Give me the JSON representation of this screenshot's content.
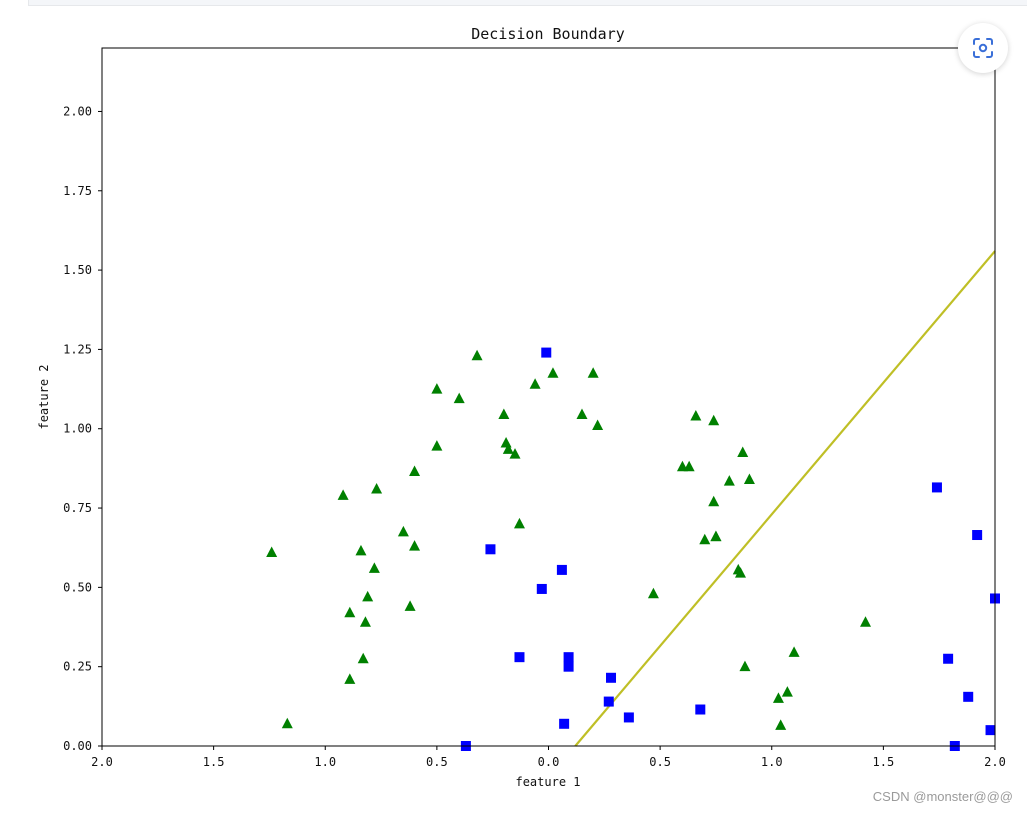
{
  "lens_button": {
    "icon": "scan-lens-icon"
  },
  "watermark": "CSDN @monster@@@",
  "chart_data": {
    "type": "scatter",
    "title": "Decision Boundary",
    "xlabel": "feature 1",
    "ylabel": "feature 2",
    "xlim": [
      -2.0,
      2.0
    ],
    "ylim": [
      0.0,
      2.2
    ],
    "x_ticks": [
      -2.0,
      -1.5,
      -1.0,
      -0.5,
      0.0,
      0.5,
      1.0,
      1.5,
      2.0
    ],
    "x_tick_labels": [
      "2.0",
      "1.5",
      "1.0",
      "0.5",
      "0.0",
      "0.5",
      "1.0",
      "1.5",
      "2.0"
    ],
    "y_ticks": [
      0.0,
      0.25,
      0.5,
      0.75,
      1.0,
      1.25,
      1.5,
      1.75,
      2.0
    ],
    "y_tick_labels": [
      "0.00",
      "0.25",
      "0.50",
      "0.75",
      "1.00",
      "1.25",
      "1.50",
      "1.75",
      "2.00"
    ],
    "grid": false,
    "series": [
      {
        "marker": "square",
        "color": "#0000ff",
        "x": [
          -0.01,
          -0.26,
          0.06,
          -0.03,
          -0.13,
          0.09,
          0.09,
          0.28,
          0.27,
          0.07,
          0.36,
          0.68,
          -0.37,
          1.74,
          1.92,
          2.0,
          1.79,
          1.88,
          1.98,
          1.82
        ],
        "y": [
          1.24,
          0.62,
          0.555,
          0.495,
          0.28,
          0.28,
          0.25,
          0.215,
          0.14,
          0.07,
          0.09,
          0.115,
          0.0,
          0.815,
          0.665,
          0.465,
          0.275,
          0.155,
          0.05,
          0.0
        ]
      },
      {
        "marker": "triangle",
        "color": "#008000",
        "x": [
          -1.24,
          -1.17,
          -0.92,
          -0.89,
          -0.89,
          -0.84,
          -0.83,
          -0.82,
          -0.81,
          -0.78,
          -0.77,
          -0.65,
          -0.62,
          -0.6,
          -0.6,
          -0.5,
          -0.5,
          -0.4,
          -0.32,
          -0.2,
          -0.19,
          -0.18,
          -0.15,
          -0.13,
          -0.06,
          0.02,
          0.15,
          0.2,
          0.22,
          0.47,
          0.6,
          0.63,
          0.66,
          0.7,
          0.74,
          0.74,
          0.75,
          0.75,
          0.81,
          0.85,
          0.86,
          0.87,
          0.88,
          0.9,
          1.03,
          1.04,
          1.07,
          1.1,
          1.42
        ],
        "y": [
          0.61,
          0.07,
          0.79,
          0.42,
          0.21,
          0.615,
          0.275,
          0.39,
          0.47,
          0.56,
          0.81,
          0.675,
          0.44,
          0.865,
          0.63,
          1.125,
          0.945,
          1.095,
          1.23,
          1.045,
          0.955,
          0.935,
          0.92,
          0.7,
          1.14,
          1.175,
          1.045,
          1.175,
          1.01,
          0.48,
          0.88,
          0.88,
          1.04,
          0.65,
          0.77,
          1.025,
          0.66,
          0.66,
          0.835,
          0.555,
          0.545,
          0.925,
          0.25,
          0.84,
          0.15,
          0.065,
          0.17,
          0.295,
          0.39
        ]
      }
    ],
    "boundary_line": {
      "color": "#bfbf26",
      "x": [
        0.12,
        2.0
      ],
      "y": [
        0.0,
        1.56
      ]
    }
  }
}
